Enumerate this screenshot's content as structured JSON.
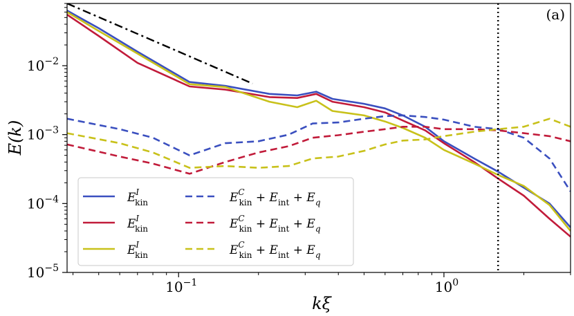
{
  "chart_data": {
    "type": "line",
    "panel_label": "(a)",
    "xlabel": "kξ",
    "ylabel": "E(k)",
    "xscale": "log",
    "yscale": "log",
    "xlim": [
      0.038,
      3.0
    ],
    "ylim": [
      1e-05,
      0.08
    ],
    "x_ticks": [
      {
        "value": 0.1,
        "base": "10",
        "exp": "−1"
      },
      {
        "value": 1.0,
        "base": "10",
        "exp": "0"
      }
    ],
    "y_ticks": [
      {
        "value": 1e-05,
        "base": "10",
        "exp": "−5"
      },
      {
        "value": 0.0001,
        "base": "10",
        "exp": "−4"
      },
      {
        "value": 0.001,
        "base": "10",
        "exp": "−3"
      },
      {
        "value": 0.01,
        "base": "10",
        "exp": "−2"
      }
    ],
    "vline": {
      "x": 1.6,
      "style": "dotted",
      "color": "#000000"
    },
    "reference_line": {
      "x": [
        0.038,
        0.19
      ],
      "y": [
        0.08,
        0.0055
      ],
      "style": "dashdot",
      "color": "#000000"
    },
    "legend": {
      "position": "lower-left",
      "entries": [
        {
          "series": 0,
          "label": "E^I_kin"
        },
        {
          "series": 1,
          "label": "E^I_kin"
        },
        {
          "series": 2,
          "label": "E^I_kin"
        },
        {
          "series": 3,
          "label": "E^C_kin + E_int + E_q"
        },
        {
          "series": 4,
          "label": "E^C_kin + E_int + E_q"
        },
        {
          "series": 5,
          "label": "E^C_kin + E_int + E_q"
        }
      ]
    },
    "legend_text": {
      "E_main": "E",
      "kin_sub": "kin",
      "int_sub": "int",
      "q_sub": "q",
      "sup_I": "I",
      "sup_C": "C",
      "plus": "+"
    },
    "series": [
      {
        "name": "E^I_kin (blue)",
        "color": "#3a4fbf",
        "dash": "solid",
        "x": [
          0.038,
          0.05,
          0.07,
          0.11,
          0.15,
          0.22,
          0.28,
          0.33,
          0.38,
          0.5,
          0.6,
          0.7,
          0.85,
          1.0,
          1.3,
          1.6,
          2.0,
          2.5,
          3.0
        ],
        "y": [
          0.063,
          0.035,
          0.016,
          0.0058,
          0.0051,
          0.0039,
          0.0037,
          0.0042,
          0.0033,
          0.0028,
          0.0024,
          0.0019,
          0.0013,
          0.0008,
          0.00045,
          0.00029,
          0.00017,
          0.0001,
          4.5e-05
        ]
      },
      {
        "name": "E^I_kin (red)",
        "color": "#c11b3a",
        "dash": "solid",
        "x": [
          0.038,
          0.05,
          0.07,
          0.11,
          0.15,
          0.22,
          0.28,
          0.33,
          0.38,
          0.5,
          0.6,
          0.7,
          0.85,
          1.0,
          1.3,
          1.6,
          2.0,
          2.5,
          3.0
        ],
        "y": [
          0.055,
          0.027,
          0.011,
          0.005,
          0.0045,
          0.0035,
          0.0034,
          0.0039,
          0.003,
          0.0025,
          0.0021,
          0.0016,
          0.00115,
          0.00075,
          0.0004,
          0.00023,
          0.00013,
          6e-05,
          3.3e-05
        ]
      },
      {
        "name": "E^I_kin (yellow)",
        "color": "#c8c11a",
        "dash": "solid",
        "x": [
          0.038,
          0.05,
          0.07,
          0.11,
          0.15,
          0.22,
          0.28,
          0.33,
          0.38,
          0.5,
          0.6,
          0.7,
          0.85,
          1.0,
          1.3,
          1.6,
          2.0,
          2.5,
          3.0
        ],
        "y": [
          0.06,
          0.032,
          0.015,
          0.0054,
          0.0049,
          0.003,
          0.0025,
          0.0031,
          0.0022,
          0.0019,
          0.00155,
          0.00125,
          0.0009,
          0.0006,
          0.00038,
          0.00026,
          0.00018,
          9.5e-05,
          4e-05
        ]
      },
      {
        "name": "E^C_kin + E_int + E_q (blue)",
        "color": "#3a4fbf",
        "dash": "dashed",
        "x": [
          0.038,
          0.06,
          0.08,
          0.11,
          0.15,
          0.2,
          0.26,
          0.32,
          0.4,
          0.5,
          0.6,
          0.7,
          0.85,
          1.0,
          1.3,
          1.6,
          2.0,
          2.5,
          3.0
        ],
        "y": [
          0.0017,
          0.0012,
          0.0009,
          0.0005,
          0.00075,
          0.0008,
          0.001,
          0.00145,
          0.0015,
          0.0017,
          0.00185,
          0.0019,
          0.0018,
          0.00165,
          0.0013,
          0.0012,
          0.0009,
          0.00045,
          0.00015
        ]
      },
      {
        "name": "E^C_kin + E_int + E_q (red)",
        "color": "#c11b3a",
        "dash": "dashed",
        "x": [
          0.038,
          0.06,
          0.08,
          0.11,
          0.15,
          0.2,
          0.26,
          0.32,
          0.4,
          0.5,
          0.6,
          0.7,
          0.85,
          1.0,
          1.3,
          1.6,
          2.0,
          2.5,
          3.0
        ],
        "y": [
          0.00072,
          0.00048,
          0.00038,
          0.00027,
          0.0004,
          0.00055,
          0.00068,
          0.0009,
          0.00098,
          0.0011,
          0.0012,
          0.0013,
          0.0013,
          0.0012,
          0.0012,
          0.00115,
          0.00105,
          0.00095,
          0.0008
        ]
      },
      {
        "name": "E^C_kin + E_int + E_q (yellow)",
        "color": "#c8c11a",
        "dash": "dashed",
        "x": [
          0.038,
          0.06,
          0.08,
          0.11,
          0.15,
          0.2,
          0.26,
          0.32,
          0.4,
          0.5,
          0.6,
          0.7,
          0.85,
          1.0,
          1.3,
          1.6,
          2.0,
          2.5,
          3.0
        ],
        "y": [
          0.00105,
          0.00075,
          0.00055,
          0.00033,
          0.00035,
          0.00033,
          0.00035,
          0.00045,
          0.00048,
          0.00058,
          0.00072,
          0.00082,
          0.00085,
          0.00095,
          0.0011,
          0.0012,
          0.0013,
          0.0017,
          0.0013
        ]
      }
    ]
  }
}
